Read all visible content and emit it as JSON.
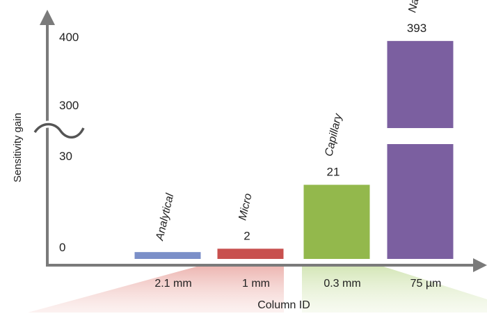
{
  "chart_data": {
    "type": "bar",
    "xlabel": "Column ID",
    "ylabel": "Sensitivity gain",
    "categories": [
      "2.1 mm",
      "1 mm",
      "0.3 mm",
      "75 µm"
    ],
    "category_names": [
      "Analytical",
      "Micro",
      "Capillary",
      "Nano"
    ],
    "values": [
      1,
      2,
      21,
      393
    ],
    "data_labels": [
      "",
      "2",
      "21",
      "393"
    ],
    "colors": [
      "#7b8fc8",
      "#c8504e",
      "#93b84c",
      "#7b5fa0"
    ],
    "y_axis": {
      "broken": true,
      "lower_segment": [
        0,
        30
      ],
      "upper_segment": [
        300,
        400
      ],
      "ticks": [
        "0",
        "30",
        "300",
        "400"
      ]
    }
  }
}
